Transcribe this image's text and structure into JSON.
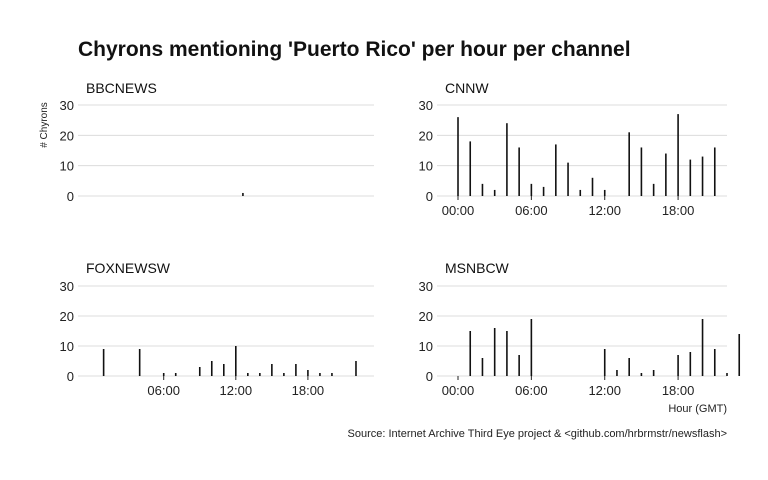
{
  "title": "Chyrons mentioning 'Puerto Rico' per hour per channel",
  "ylabel": "# Chyrons",
  "xlabel": "Hour (GMT)",
  "caption": "Source: Internet Archive Third Eye project & <github.com/hrbrmstr/newsflash>",
  "chart_data": {
    "type": "bar",
    "ylim": [
      0,
      30
    ],
    "yticks": [
      0,
      10,
      20,
      30
    ],
    "grid": true,
    "panels": [
      {
        "name": "BBCNEWS",
        "xlim": [
          -1,
          23
        ],
        "xticks": [],
        "x": [
          12
        ],
        "values": [
          1
        ]
      },
      {
        "name": "CNNW",
        "xlim": [
          -0.9,
          22
        ],
        "xticks": [
          "00:00",
          "06:00",
          "12:00",
          "18:00"
        ],
        "x": [
          0,
          1,
          2,
          3,
          4,
          5,
          6,
          7,
          8,
          9,
          10,
          11,
          12,
          14,
          15,
          16,
          17,
          18,
          19,
          20,
          21
        ],
        "values": [
          26,
          18,
          4,
          2,
          24,
          16,
          4,
          3,
          17,
          11,
          2,
          6,
          2,
          21,
          16,
          4,
          14,
          27,
          12,
          13,
          16
        ]
      },
      {
        "name": "FOXNEWSW",
        "xlim": [
          -0.3,
          23.5
        ],
        "xticks": [
          "06:00",
          "12:00",
          "18:00"
        ],
        "x": [
          1,
          4,
          6,
          7,
          9,
          10,
          11,
          12,
          13,
          14,
          15,
          16,
          17,
          18,
          19,
          20,
          22
        ],
        "values": [
          9,
          9,
          1,
          1,
          3,
          5,
          4,
          10,
          1,
          1,
          4,
          1,
          4,
          2,
          1,
          1,
          5
        ]
      },
      {
        "name": "MSNBCW",
        "xlim": [
          -0.9,
          22
        ],
        "xticks": [
          "00:00",
          "06:00",
          "12:00",
          "18:00"
        ],
        "x": [
          1,
          2,
          3,
          4,
          5,
          6,
          12,
          13,
          14,
          15,
          16,
          18,
          19,
          20,
          21,
          22,
          23
        ],
        "values": [
          15,
          6,
          16,
          15,
          7,
          19,
          9,
          2,
          6,
          1,
          2,
          7,
          8,
          19,
          9,
          1,
          14
        ]
      }
    ]
  }
}
